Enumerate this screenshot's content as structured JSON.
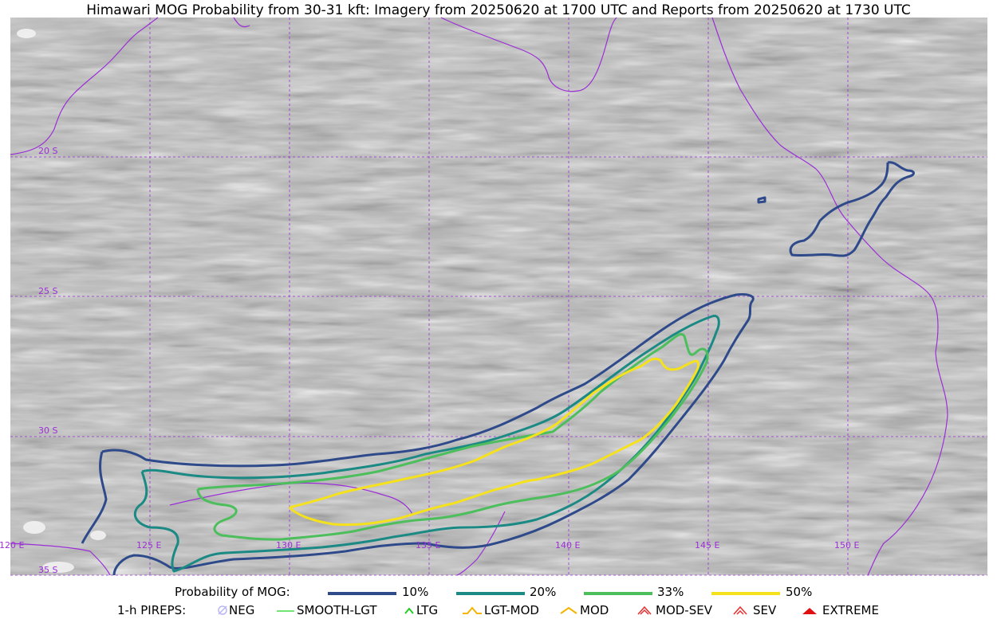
{
  "title": "Himawari MOG Probability from 30-31 kft: Imagery from 20250620 at 1700 UTC and Reports from 20250620 at 1730 UTC",
  "map": {
    "lat_labels": [
      "20 S",
      "25 S",
      "30 S",
      "35 S"
    ],
    "lon_labels": [
      "120 E",
      "125 E",
      "130 E",
      "135 E",
      "140 E",
      "145 E",
      "150 E"
    ]
  },
  "legend_probability": {
    "title": "Probability of MOG:",
    "entries": [
      {
        "label": "10%",
        "color": "#2f4a8a"
      },
      {
        "label": "20%",
        "color": "#1b8a84"
      },
      {
        "label": "33%",
        "color": "#4cbf5c"
      },
      {
        "label": "50%",
        "color": "#f5e21c"
      }
    ]
  },
  "legend_pireps": {
    "title": "1-h PIREPS:",
    "entries": [
      {
        "label": "NEG",
        "icon": "neg-icon",
        "color": "#b9b7f5"
      },
      {
        "label": "SMOOTH-LGT",
        "icon": "smooth-lgt-icon",
        "color": "#44dd44"
      },
      {
        "label": "LTG",
        "icon": "ltg-icon",
        "color": "#22cc22"
      },
      {
        "label": "LGT-MOD",
        "icon": "lgt-mod-icon",
        "color": "#f5b400"
      },
      {
        "label": "MOD",
        "icon": "mod-icon",
        "color": "#f5b400"
      },
      {
        "label": "MOD-SEV",
        "icon": "mod-sev-icon",
        "color": "#e53030"
      },
      {
        "label": "SEV",
        "icon": "sev-icon",
        "color": "#e53030"
      },
      {
        "label": "EXTREME",
        "icon": "extreme-icon",
        "color": "#e01010"
      }
    ]
  }
}
